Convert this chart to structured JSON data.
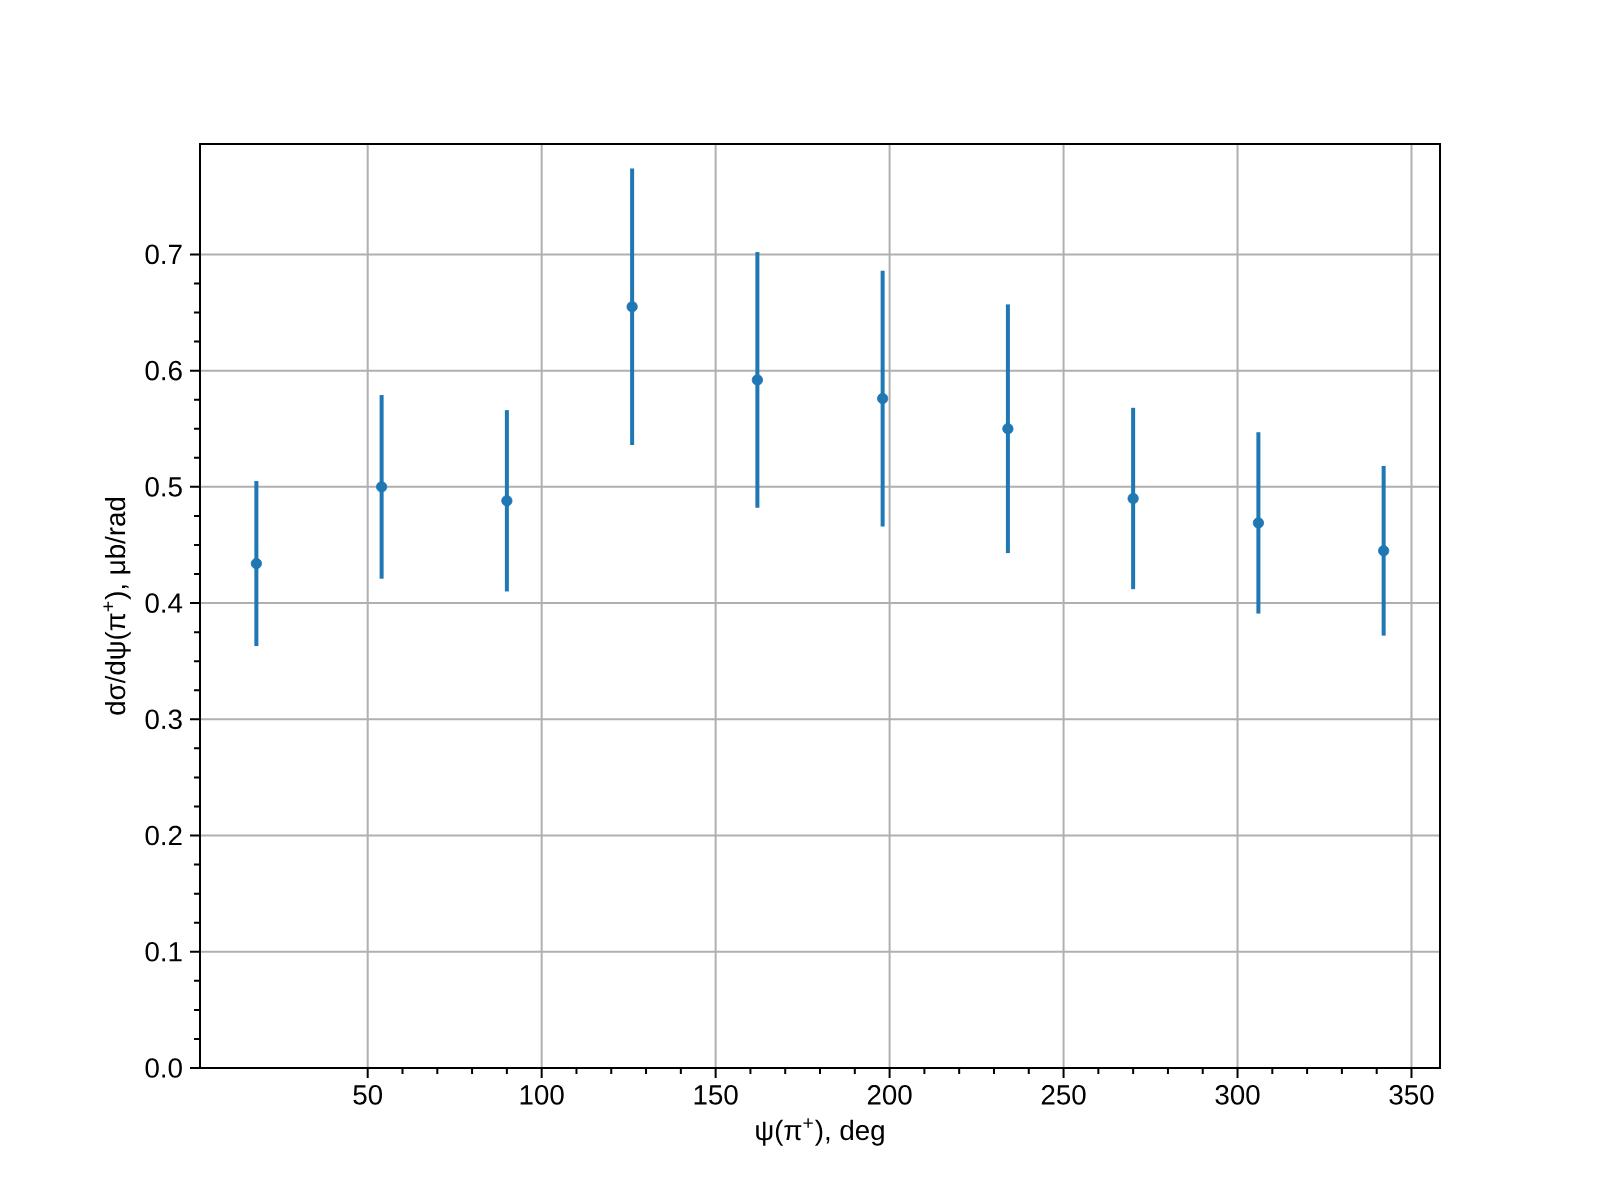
{
  "chart_data": {
    "type": "scatter",
    "xlabel": "ψ(π$^{+}$), deg",
    "ylabel": "dσ/dψ(π$^{+}$), μb/rad",
    "x": [
      18,
      54,
      90,
      126,
      162,
      198,
      234,
      270,
      306,
      342
    ],
    "values": [
      0.434,
      0.5,
      0.488,
      0.655,
      0.592,
      0.576,
      0.55,
      0.49,
      0.469,
      0.445
    ],
    "errors": [
      0.071,
      0.079,
      0.078,
      0.119,
      0.11,
      0.11,
      0.107,
      0.078,
      0.078,
      0.073
    ],
    "color": "#1f77b4",
    "marker": "circle",
    "xlim": [
      1.8,
      358.2
    ],
    "ylim": [
      0,
      0.795
    ],
    "xticks": [
      50,
      100,
      150,
      200,
      250,
      300,
      350
    ],
    "yticks": [
      {
        "value": 0,
        "label": "0.0"
      },
      0.1,
      0.2,
      0.3,
      0.4,
      0.5,
      0.6,
      0.7
    ],
    "grid": true
  }
}
